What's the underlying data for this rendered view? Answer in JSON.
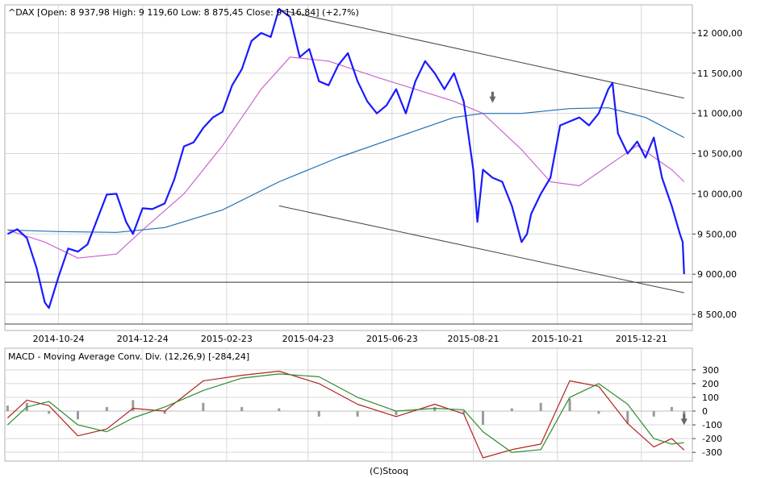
{
  "chart_data": [
    {
      "type": "line",
      "title": "^DAX [Open: 8 937,98  High: 9 119,60  Low: 8 875,45  Close: 9 116,84] (+2,7%)",
      "x_tick_labels": [
        "2014-10-24",
        "2014-12-24",
        "2015-02-23",
        "2015-04-23",
        "2015-06-23",
        "2015-08-21",
        "2015-10-21",
        "2015-12-21"
      ],
      "y_tick_labels": [
        "12 000,00",
        "11 500,00",
        "11 000,00",
        "10 500,00",
        "10 000,00",
        "9 500,00",
        "9 000,00",
        "8 500,00"
      ],
      "ylim": [
        8300,
        12350
      ],
      "grid": true,
      "reference_line": 8900,
      "series": [
        {
          "key": "price",
          "color": "#1a1aff",
          "x": [
            "2014-09-17",
            "2014-09-24",
            "2014-10-01",
            "2014-10-08",
            "2014-10-14",
            "2014-10-17",
            "2014-10-24",
            "2014-10-31",
            "2014-11-07",
            "2014-11-14",
            "2014-11-21",
            "2014-11-28",
            "2014-12-05",
            "2014-12-12",
            "2014-12-17",
            "2014-12-24",
            "2014-12-31",
            "2015-01-09",
            "2015-01-16",
            "2015-01-23",
            "2015-01-30",
            "2015-02-06",
            "2015-02-13",
            "2015-02-20",
            "2015-02-27",
            "2015-03-06",
            "2015-03-13",
            "2015-03-20",
            "2015-03-27",
            "2015-04-02",
            "2015-04-10",
            "2015-04-17",
            "2015-04-24",
            "2015-05-01",
            "2015-05-08",
            "2015-05-15",
            "2015-05-22",
            "2015-05-29",
            "2015-06-05",
            "2015-06-12",
            "2015-06-19",
            "2015-06-26",
            "2015-07-03",
            "2015-07-10",
            "2015-07-17",
            "2015-07-24",
            "2015-07-31",
            "2015-08-07",
            "2015-08-14",
            "2015-08-21",
            "2015-08-24",
            "2015-08-28",
            "2015-09-04",
            "2015-09-11",
            "2015-09-18",
            "2015-09-25",
            "2015-09-29",
            "2015-10-02",
            "2015-10-09",
            "2015-10-16",
            "2015-10-23",
            "2015-10-30",
            "2015-11-06",
            "2015-11-13",
            "2015-11-20",
            "2015-11-27",
            "2015-11-30",
            "2015-12-04",
            "2015-12-11",
            "2015-12-18",
            "2015-12-24",
            "2015-12-30",
            "2016-01-05",
            "2016-01-12",
            "2016-01-18",
            "2016-01-20",
            "2016-01-21"
          ],
          "values": [
            9500,
            9560,
            9450,
            9080,
            8650,
            8580,
            8970,
            9320,
            9280,
            9370,
            9680,
            9990,
            10000,
            9650,
            9500,
            9820,
            9810,
            9880,
            10180,
            10590,
            10640,
            10820,
            10950,
            11020,
            11350,
            11550,
            11900,
            12000,
            11950,
            12300,
            12200,
            11700,
            11800,
            11400,
            11350,
            11600,
            11750,
            11400,
            11150,
            11000,
            11100,
            11300,
            11000,
            11400,
            11650,
            11500,
            11300,
            11500,
            11150,
            10300,
            9650,
            10300,
            10200,
            10150,
            9850,
            9400,
            9500,
            9750,
            10000,
            10200,
            10850,
            10900,
            10950,
            10850,
            11000,
            11300,
            11380,
            10750,
            10500,
            10650,
            10450,
            10700,
            10200,
            9850,
            9500,
            9400,
            9000
          ]
        },
        {
          "key": "sma_short",
          "color": "#cc66cc",
          "x": [
            "2014-09-17",
            "2014-10-14",
            "2014-11-07",
            "2014-12-05",
            "2014-12-24",
            "2015-01-23",
            "2015-02-20",
            "2015-03-20",
            "2015-04-10",
            "2015-05-08",
            "2015-06-12",
            "2015-07-10",
            "2015-08-07",
            "2015-08-28",
            "2015-09-25",
            "2015-10-16",
            "2015-11-06",
            "2015-11-27",
            "2015-12-18",
            "2016-01-12",
            "2016-01-21"
          ],
          "values": [
            9550,
            9400,
            9200,
            9250,
            9550,
            10000,
            10600,
            11300,
            11700,
            11650,
            11450,
            11300,
            11150,
            11000,
            10550,
            10150,
            10100,
            10350,
            10600,
            10300,
            10150
          ]
        },
        {
          "key": "sma_long",
          "color": "#1f6fb5",
          "x": [
            "2014-09-17",
            "2014-10-24",
            "2014-12-05",
            "2015-01-09",
            "2015-02-20",
            "2015-04-02",
            "2015-05-15",
            "2015-06-26",
            "2015-08-07",
            "2015-08-28",
            "2015-09-25",
            "2015-10-30",
            "2015-11-27",
            "2015-12-24",
            "2016-01-21"
          ],
          "values": [
            9550,
            9530,
            9520,
            9580,
            9800,
            10150,
            10450,
            10700,
            10950,
            11000,
            11000,
            11060,
            11070,
            10950,
            10700
          ]
        }
      ],
      "trend_lines": [
        {
          "x": [
            "2015-04-02",
            "2016-01-21"
          ],
          "values": [
            12290,
            11190
          ]
        },
        {
          "x": [
            "2015-04-02",
            "2016-01-21"
          ],
          "values": [
            9850,
            8770
          ]
        }
      ],
      "markers": [
        {
          "x": "2015-09-04",
          "value": 11150,
          "symbol": "down-arrow"
        }
      ]
    },
    {
      "type": "line",
      "title": "MACD - Moving Average Conv. Div. (12,26,9) [-284,24]",
      "y_tick_labels": [
        "300",
        "200",
        "100",
        "0",
        "-100",
        "-200",
        "-300"
      ],
      "ylim": [
        -340,
        340
      ],
      "grid": true,
      "x": [
        "2014-09-17",
        "2014-10-01",
        "2014-10-17",
        "2014-11-07",
        "2014-11-28",
        "2014-12-17",
        "2015-01-09",
        "2015-02-06",
        "2015-03-06",
        "2015-04-02",
        "2015-05-01",
        "2015-05-29",
        "2015-06-26",
        "2015-07-24",
        "2015-08-14",
        "2015-08-28",
        "2015-09-18",
        "2015-10-09",
        "2015-10-30",
        "2015-11-20",
        "2015-12-11",
        "2015-12-30",
        "2016-01-12",
        "2016-01-21"
      ],
      "series": [
        {
          "key": "macd",
          "color": "#b22222",
          "values": [
            -50,
            80,
            40,
            -180,
            -130,
            20,
            0,
            220,
            260,
            290,
            200,
            50,
            -40,
            50,
            -20,
            -340,
            -280,
            -240,
            220,
            180,
            -90,
            -260,
            -200,
            -284
          ]
        },
        {
          "key": "signal",
          "color": "#2e8b2e",
          "values": [
            -100,
            30,
            70,
            -100,
            -150,
            -50,
            30,
            150,
            240,
            270,
            250,
            100,
            0,
            20,
            10,
            -150,
            -300,
            -280,
            100,
            200,
            50,
            -200,
            -240,
            -230
          ]
        },
        {
          "key": "histogram",
          "color": "#9a9a9a",
          "values": [
            40,
            60,
            -20,
            -60,
            30,
            80,
            -20,
            60,
            30,
            20,
            -40,
            -40,
            -30,
            30,
            -20,
            -100,
            20,
            60,
            90,
            -20,
            -90,
            -40,
            30,
            -50
          ]
        }
      ],
      "markers": [
        {
          "x": "2016-01-21",
          "value": -90,
          "symbol": "down-arrow"
        }
      ]
    }
  ],
  "footer": "(C)Stooq"
}
